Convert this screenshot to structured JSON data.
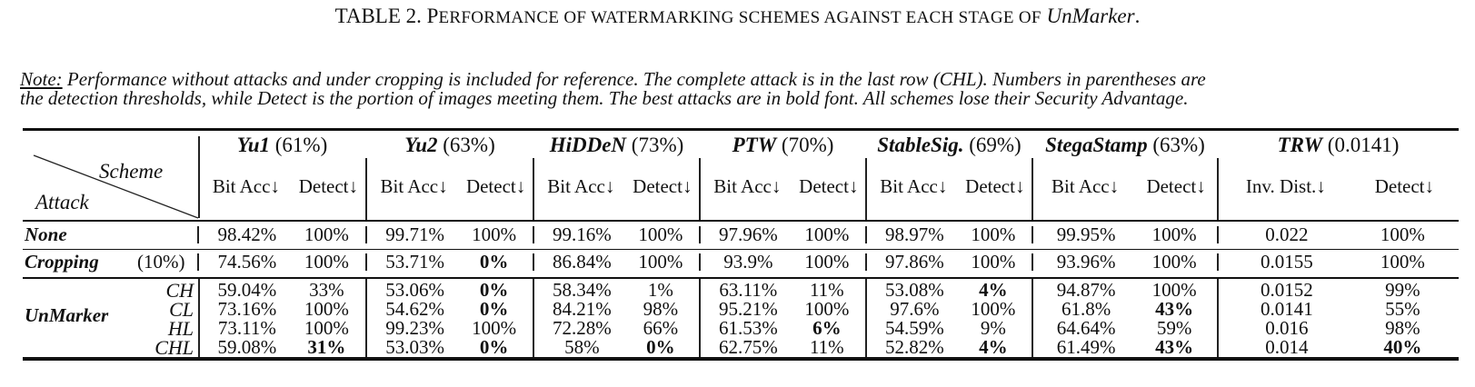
{
  "title": {
    "lead": "TABLE 2. P",
    "smallcaps": "ERFORMANCE OF WATERMARKING SCHEMES AGAINST EACH STAGE OF",
    "tool": "UnMarker",
    "end": "."
  },
  "note": {
    "label": "Note:",
    "line1": " Performance without attacks and under cropping is included for reference. The complete attack is in the last row (CHL). Numbers in parentheses are",
    "line2": "the detection thresholds, while Detect is the portion of images meeting them. The best attacks are in bold font. All schemes lose their Security Advantage."
  },
  "table": {
    "corner": {
      "scheme": "Scheme",
      "attack": "Attack"
    },
    "schemes": [
      {
        "name": "Yu1",
        "threshold": "(61%)",
        "sub1": "Bit Acc↓",
        "sub2": "Detect↓"
      },
      {
        "name": "Yu2",
        "threshold": "(63%)",
        "sub1": "Bit Acc↓",
        "sub2": "Detect↓"
      },
      {
        "name": "HiDDeN",
        "threshold": "(73%)",
        "sub1": "Bit Acc↓",
        "sub2": "Detect↓"
      },
      {
        "name": "PTW",
        "threshold": "(70%)",
        "sub1": "Bit Acc↓",
        "sub2": "Detect↓"
      },
      {
        "name": "StableSig.",
        "threshold": "(69%)",
        "sub1": "Bit Acc↓",
        "sub2": "Detect↓"
      },
      {
        "name": "StegaStamp",
        "threshold": "(63%)",
        "sub1": "Bit Acc↓",
        "sub2": "Detect↓"
      },
      {
        "name": "TRW",
        "threshold": "(0.0141)",
        "sub1": "Inv. Dist.↓",
        "sub2": "Detect↓"
      }
    ],
    "rows": [
      {
        "attack": "None",
        "param": "",
        "values": [
          "98.42%",
          "100%",
          "99.71%",
          "100%",
          "99.16%",
          "100%",
          "97.96%",
          "100%",
          "98.97%",
          "100%",
          "99.95%",
          "100%",
          "0.022",
          "100%"
        ],
        "bold": []
      },
      {
        "attack": "Cropping",
        "param": "(10%)",
        "values": [
          "74.56%",
          "100%",
          "53.71%",
          "0%",
          "86.84%",
          "100%",
          "93.9%",
          "100%",
          "97.86%",
          "100%",
          "93.96%",
          "100%",
          "0.0155",
          "100%"
        ],
        "bold": [
          3
        ]
      },
      {
        "attack": "UnMarker",
        "param": "CH",
        "values": [
          "59.04%",
          "33%",
          "53.06%",
          "0%",
          "58.34%",
          "1%",
          "63.11%",
          "11%",
          "53.08%",
          "4%",
          "94.87%",
          "100%",
          "0.0152",
          "99%"
        ],
        "bold": [
          3,
          9
        ]
      },
      {
        "attack": "",
        "param": "CL",
        "values": [
          "73.16%",
          "100%",
          "54.62%",
          "0%",
          "84.21%",
          "98%",
          "95.21%",
          "100%",
          "97.6%",
          "100%",
          "61.8%",
          "43%",
          "0.0141",
          "55%"
        ],
        "bold": [
          3,
          11
        ]
      },
      {
        "attack": "",
        "param": "HL",
        "values": [
          "73.11%",
          "100%",
          "99.23%",
          "100%",
          "72.28%",
          "66%",
          "61.53%",
          "6%",
          "54.59%",
          "9%",
          "64.64%",
          "59%",
          "0.016",
          "98%"
        ],
        "bold": [
          7
        ]
      },
      {
        "attack": "",
        "param": "CHL",
        "values": [
          "59.08%",
          "31%",
          "53.03%",
          "0%",
          "58%",
          "0%",
          "62.75%",
          "11%",
          "52.82%",
          "4%",
          "61.49%",
          "43%",
          "0.014",
          "40%"
        ],
        "bold": [
          1,
          3,
          5,
          9,
          11,
          13
        ]
      }
    ]
  }
}
